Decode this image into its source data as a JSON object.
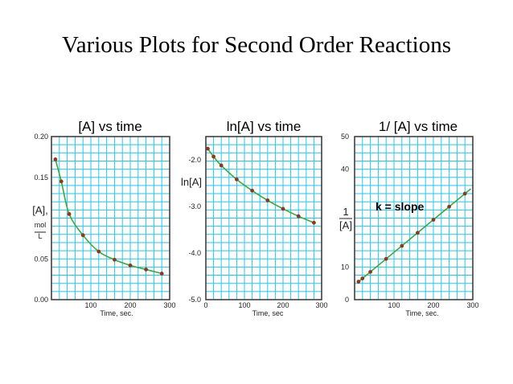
{
  "slide_title": "Various Plots for Second Order Reactions",
  "colors": {
    "grid": "#22c7f0",
    "frame": "#333333",
    "curve": "#3aa93a",
    "point": "#8b3a1c",
    "background": "#ffffff"
  },
  "chart_data": [
    {
      "type": "line",
      "title": "[A]  vs time",
      "xlabel": "Time, sec.",
      "ylabel_lines": [
        "[A],",
        "mol",
        "L"
      ],
      "xlim": [
        0,
        300
      ],
      "ylim": [
        0,
        0.2
      ],
      "x_ticks": [
        "100",
        "200",
        "300"
      ],
      "y_ticks": [
        "0.00",
        "0.05",
        "0.15",
        "0.20"
      ],
      "grid": true,
      "x": [
        10,
        25,
        45,
        80,
        120,
        160,
        200,
        240,
        280
      ],
      "y": [
        0.172,
        0.145,
        0.105,
        0.079,
        0.059,
        0.049,
        0.042,
        0.037,
        0.032
      ]
    },
    {
      "type": "line",
      "title": "ln[A] vs time",
      "xlabel": "Time, sec",
      "ylabel_lines": [
        "ln[A]"
      ],
      "xlim": [
        0,
        300
      ],
      "ylim": [
        -5,
        -1.5
      ],
      "x_ticks": [
        "0",
        "100",
        "200",
        "300"
      ],
      "y_ticks": [
        "-2.0",
        "-3.0",
        "-4.0",
        "-5.0"
      ],
      "grid": true,
      "x": [
        5,
        20,
        40,
        80,
        120,
        160,
        200,
        240,
        280
      ],
      "y": [
        -1.76,
        -1.93,
        -2.12,
        -2.42,
        -2.66,
        -2.87,
        -3.05,
        -3.21,
        -3.35
      ]
    },
    {
      "type": "line",
      "title": "1/ [A] vs time",
      "xlabel": "Time, sec.",
      "ylabel_lines": [
        "1",
        "[A]"
      ],
      "xlim": [
        0,
        300
      ],
      "ylim": [
        0,
        50
      ],
      "x_ticks": [
        "100",
        "200",
        "300"
      ],
      "y_ticks": [
        "0",
        "10",
        "40",
        "50"
      ],
      "grid": true,
      "annotation": "k = slope",
      "x": [
        10,
        20,
        40,
        80,
        120,
        160,
        200,
        240,
        280
      ],
      "y": [
        5.5,
        6.5,
        8.5,
        12.5,
        16.5,
        20.5,
        24.5,
        28.5,
        32.5
      ]
    }
  ]
}
